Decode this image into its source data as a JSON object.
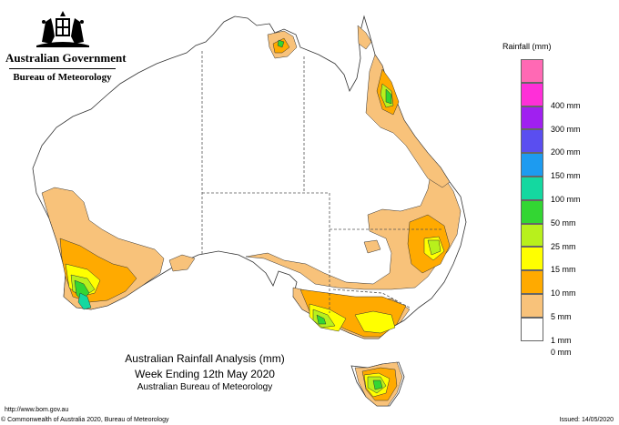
{
  "header": {
    "government": "Australian Government",
    "bureau": "Bureau of Meteorology"
  },
  "legend": {
    "title": "Rainfall (mm)",
    "items": [
      {
        "label": "",
        "color": "#ff69b4"
      },
      {
        "label": "400 mm",
        "color": "#ff2fd8"
      },
      {
        "label": "300 mm",
        "color": "#a020f0"
      },
      {
        "label": "200 mm",
        "color": "#5a4ef0"
      },
      {
        "label": "150 mm",
        "color": "#1d9bf0"
      },
      {
        "label": "100 mm",
        "color": "#14d8a0"
      },
      {
        "label": "50 mm",
        "color": "#33d633"
      },
      {
        "label": "25 mm",
        "color": "#b8f01c"
      },
      {
        "label": "15 mm",
        "color": "#ffff00"
      },
      {
        "label": "10 mm",
        "color": "#ffaa00"
      },
      {
        "label": "5 mm",
        "color": "#f8c27a"
      },
      {
        "label": "1 mm",
        "color": "#ffffff"
      },
      {
        "label": "0 mm",
        "color": ""
      }
    ]
  },
  "title": {
    "line1": "Australian Rainfall Analysis (mm)",
    "line2": "Week Ending 12th May 2020",
    "line3": "Australian Bureau of Meteorology"
  },
  "footer": {
    "url": "http://www.bom.gov.au",
    "copyright": "© Commonwealth of Australia 2020, Bureau of Meteorology",
    "issued": "Issued: 14/05/2020"
  },
  "map": {
    "regions": [
      "Western Australia",
      "Northern Territory",
      "South Australia",
      "Queensland",
      "New South Wales",
      "Victoria",
      "Tasmania"
    ],
    "colors": {
      "land": "#ffffff",
      "outline": "#333333",
      "border": "#555555"
    }
  }
}
